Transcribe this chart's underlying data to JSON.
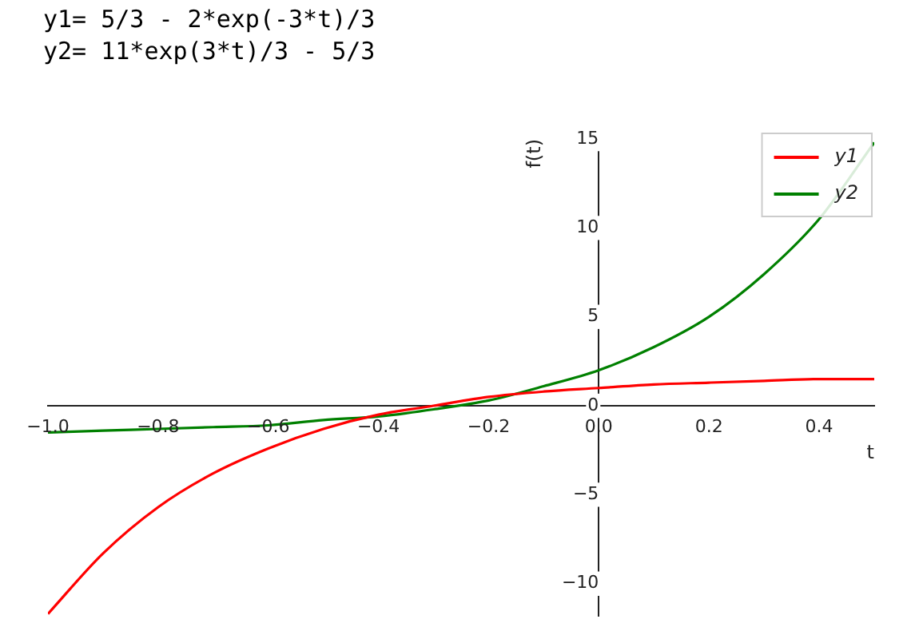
{
  "chart_data": {
    "type": "line",
    "xlabel": "t",
    "ylabel": "f(t)",
    "annotations": [
      "y1= 5/3 - 2*exp(-3*t)/3",
      "y2= 11*exp(3*t)/3 - 5/3"
    ],
    "x": [
      -1.0,
      -0.9,
      -0.8,
      -0.7,
      -0.6,
      -0.5,
      -0.4,
      -0.3,
      -0.2,
      -0.1,
      0.0,
      0.1,
      0.2,
      0.3,
      0.4,
      0.5
    ],
    "series": [
      {
        "name": "y1",
        "color": "#ff0000",
        "values": [
          -11.7,
          -8.3,
          -5.7,
          -3.8,
          -2.4,
          -1.3,
          -0.5,
          0.0,
          0.5,
          0.8,
          1.0,
          1.2,
          1.3,
          1.4,
          1.5,
          1.5
        ]
      },
      {
        "name": "y2",
        "color": "#008000",
        "values": [
          -1.5,
          -1.4,
          -1.3,
          -1.2,
          -1.1,
          -0.8,
          -0.6,
          -0.2,
          0.3,
          1.1,
          2.0,
          3.3,
          5.0,
          7.4,
          10.5,
          14.8
        ]
      }
    ],
    "xlim": [
      -1.0,
      0.5
    ],
    "ylim": [
      -11.8,
      15
    ],
    "xticks": [
      {
        "value": -1.0,
        "label": "−1.0"
      },
      {
        "value": -0.8,
        "label": "−0.8"
      },
      {
        "value": -0.6,
        "label": "−0.6"
      },
      {
        "value": -0.4,
        "label": "−0.4"
      },
      {
        "value": -0.2,
        "label": "−0.2"
      },
      {
        "value": 0,
        "label": "0.0"
      },
      {
        "value": 0.2,
        "label": "0.2"
      },
      {
        "value": 0.4,
        "label": "0.4"
      }
    ],
    "yticks": [
      {
        "value": -10,
        "label": "−10"
      },
      {
        "value": -5,
        "label": "−5"
      },
      0,
      5,
      10,
      15
    ],
    "grid": false,
    "legend": "top right",
    "marker": "none",
    "line_style": "solid"
  }
}
